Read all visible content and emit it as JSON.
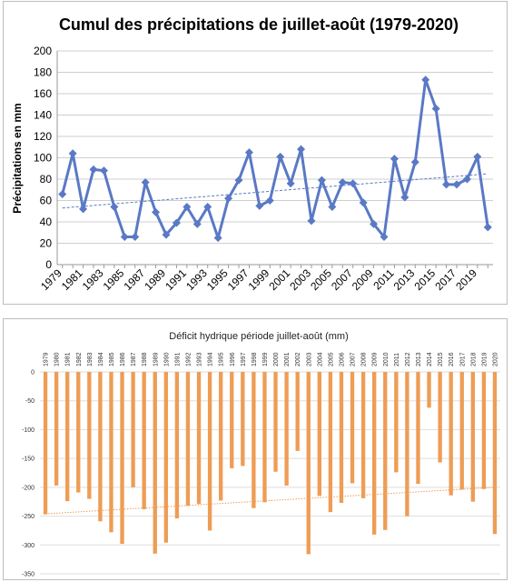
{
  "chart_data": [
    {
      "type": "line",
      "title": "Cumul des précipitations de juillet-août (1979-2020)",
      "xlabel": "",
      "ylabel": "Précipitations en mm",
      "ylim": [
        0,
        200
      ],
      "yticks": [
        0,
        20,
        40,
        60,
        80,
        100,
        120,
        140,
        160,
        180,
        200
      ],
      "x": [
        1979,
        1980,
        1981,
        1982,
        1983,
        1984,
        1985,
        1986,
        1987,
        1988,
        1989,
        1990,
        1991,
        1992,
        1993,
        1994,
        1995,
        1996,
        1997,
        1998,
        1999,
        2000,
        2001,
        2002,
        2003,
        2004,
        2005,
        2006,
        2007,
        2008,
        2009,
        2010,
        2011,
        2012,
        2013,
        2014,
        2015,
        2016,
        2017,
        2018,
        2019,
        2020
      ],
      "xtick_labels": [
        "1979",
        "1981",
        "1983",
        "1985",
        "1987",
        "1989",
        "1991",
        "1993",
        "1995",
        "1997",
        "1999",
        "2001",
        "2003",
        "2005",
        "2007",
        "2009",
        "2011",
        "2013",
        "2015",
        "2017",
        "2019"
      ],
      "series": [
        {
          "values": [
            66,
            104,
            52,
            89,
            88,
            54,
            26,
            26,
            77,
            49,
            28,
            39,
            54,
            38,
            54,
            25,
            62,
            79,
            105,
            55,
            60,
            101,
            76,
            108,
            41,
            79,
            54,
            77,
            76,
            58,
            38,
            26,
            99,
            63,
            96,
            173,
            146,
            75,
            75,
            80,
            101,
            35
          ],
          "color": "#5a79c5",
          "marker": "diamond"
        }
      ],
      "trendline": {
        "type": "linear",
        "from": 53,
        "to": 85,
        "style": "dashed",
        "color": "#5a79c5"
      },
      "grid": "horizontal",
      "legend": "none"
    },
    {
      "type": "bar",
      "title": "Déficit hydrique période juillet-août (mm)",
      "xlabel": "",
      "ylabel": "",
      "ylim": [
        -350,
        0
      ],
      "yticks": [
        0,
        -50,
        -100,
        -150,
        -200,
        -250,
        -300,
        -350
      ],
      "categories": [
        "1979",
        "1980",
        "1981",
        "1982",
        "1983",
        "1984",
        "1985",
        "1986",
        "1987",
        "1988",
        "1989",
        "1990",
        "1991",
        "1992",
        "1993",
        "1994",
        "1995",
        "1996",
        "1997",
        "1998",
        "1999",
        "2000",
        "2001",
        "2002",
        "2003",
        "2004",
        "2005",
        "2006",
        "2007",
        "2008",
        "2009",
        "2010",
        "2011",
        "2012",
        "2013",
        "2014",
        "2015",
        "2016",
        "2017",
        "2018",
        "2019",
        "2020"
      ],
      "values": [
        -247,
        -197,
        -224,
        -209,
        -220,
        -259,
        -278,
        -298,
        -200,
        -238,
        -315,
        -296,
        -254,
        -232,
        -229,
        -275,
        -223,
        -167,
        -163,
        -236,
        -226,
        -173,
        -197,
        -137,
        -316,
        -215,
        -243,
        -227,
        -193,
        -219,
        -282,
        -274,
        -174,
        -250,
        -194,
        -62,
        -157,
        -214,
        -204,
        -225,
        -203,
        -281
      ],
      "color": "#ee9d55",
      "trendline": {
        "type": "linear",
        "from": -246,
        "to": -200,
        "style": "dotted",
        "color": "#ee9d55"
      },
      "grid": "horizontal",
      "legend": "none"
    }
  ]
}
